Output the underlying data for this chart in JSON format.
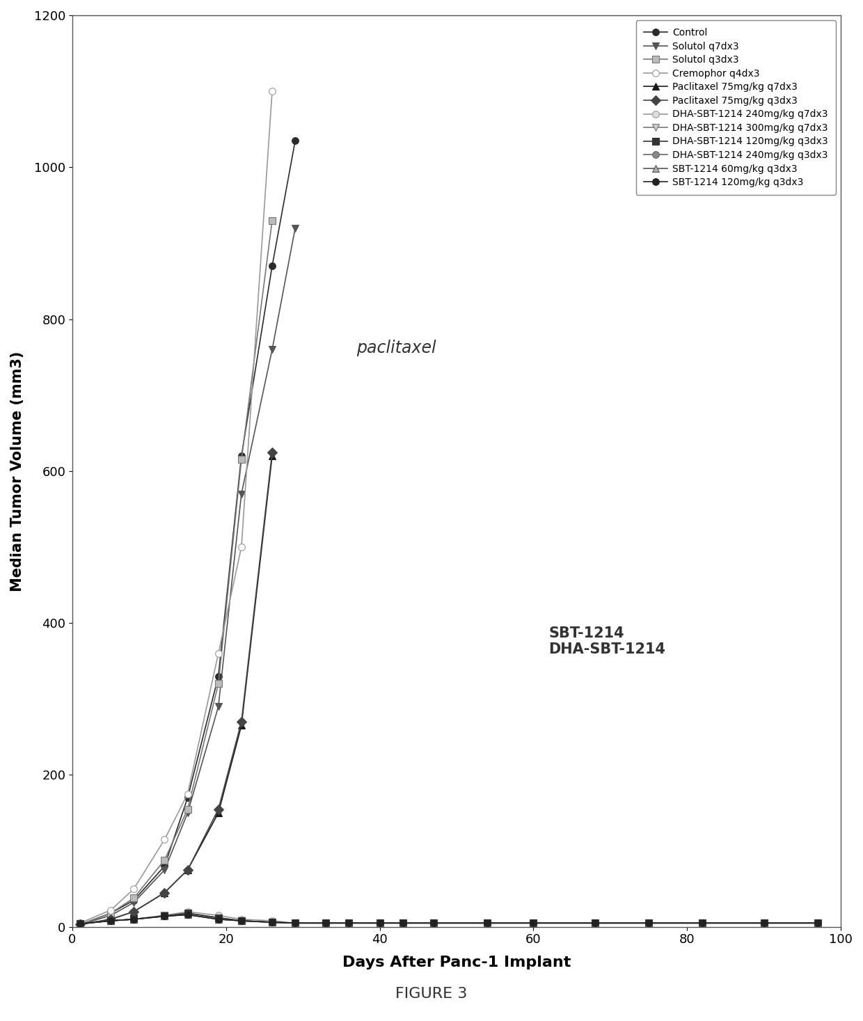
{
  "xlabel": "Days After Panc-1 Implant",
  "ylabel": "Median Tumor Volume (mm3)",
  "figure_caption": "FIGURE 3",
  "annotation_text": "paclitaxel",
  "annotation2_text": "SBT-1214\nDHA-SBT-1214",
  "xlim": [
    0,
    100
  ],
  "ylim": [
    0,
    1200
  ],
  "xticks": [
    0,
    20,
    40,
    60,
    80,
    100
  ],
  "yticks": [
    0,
    200,
    400,
    600,
    800,
    1000,
    1200
  ],
  "series": [
    {
      "label": "Control",
      "color": "#2b2b2b",
      "marker": "o",
      "mfc": "#2b2b2b",
      "mec": "#2b2b2b",
      "x": [
        1,
        5,
        8,
        12,
        15,
        19,
        22,
        26,
        29
      ],
      "y": [
        3,
        18,
        35,
        80,
        170,
        330,
        620,
        870,
        1035
      ]
    },
    {
      "label": "Solutol q7dx3",
      "color": "#555555",
      "marker": "v",
      "mfc": "#555555",
      "mec": "#555555",
      "x": [
        1,
        5,
        8,
        12,
        15,
        19,
        22,
        26,
        29
      ],
      "y": [
        3,
        15,
        32,
        75,
        150,
        290,
        570,
        760,
        920
      ]
    },
    {
      "label": "Solutol q3dx3",
      "color": "#777777",
      "marker": "s",
      "mfc": "#bbbbbb",
      "mec": "#777777",
      "x": [
        1,
        5,
        8,
        12,
        15,
        19,
        22,
        26
      ],
      "y": [
        3,
        18,
        38,
        88,
        155,
        320,
        615,
        930
      ]
    },
    {
      "label": "Cremophor q4dx3",
      "color": "#999999",
      "marker": "o",
      "mfc": "#ffffff",
      "mec": "#999999",
      "x": [
        1,
        5,
        8,
        12,
        15,
        19,
        22,
        26
      ],
      "y": [
        5,
        22,
        50,
        115,
        175,
        360,
        500,
        1100
      ]
    },
    {
      "label": "Paclitaxel 75mg/kg q7dx3",
      "color": "#1a1a1a",
      "marker": "^",
      "mfc": "#1a1a1a",
      "mec": "#1a1a1a",
      "x": [
        1,
        5,
        8,
        12,
        15,
        19,
        22,
        26,
        29,
        33,
        36,
        40,
        43
      ],
      "y": [
        3,
        10,
        20,
        45,
        75,
        150,
        265,
        620,
        null,
        null,
        null,
        null,
        null
      ]
    },
    {
      "label": "Paclitaxel 75mg/kg q3dx3",
      "color": "#444444",
      "marker": "D",
      "mfc": "#444444",
      "mec": "#444444",
      "x": [
        1,
        5,
        8,
        12,
        15,
        19,
        22,
        26,
        29,
        33,
        36,
        40,
        43,
        47
      ],
      "y": [
        3,
        10,
        20,
        45,
        75,
        155,
        270,
        625,
        null,
        null,
        null,
        null,
        null,
        null
      ]
    },
    {
      "label": "DHA-SBT-1214 240mg/kg q7dx3",
      "color": "#999999",
      "marker": "o",
      "mfc": "#dddddd",
      "mec": "#999999",
      "x": [
        1,
        5,
        8,
        12,
        15,
        19,
        22,
        26,
        29,
        33,
        36,
        40,
        43,
        47,
        54,
        60,
        68,
        75,
        82,
        90,
        97
      ],
      "y": [
        4,
        8,
        10,
        15,
        20,
        15,
        10,
        8,
        5,
        5,
        5,
        5,
        5,
        5,
        5,
        5,
        5,
        5,
        5,
        5,
        5
      ]
    },
    {
      "label": "DHA-SBT-1214 300mg/kg q7dx3",
      "color": "#777777",
      "marker": "v",
      "mfc": "#cccccc",
      "mec": "#777777",
      "x": [
        1,
        5,
        8,
        12,
        15,
        19,
        22,
        26,
        29,
        33,
        36,
        40,
        43,
        47,
        54,
        60,
        68,
        75,
        82,
        90,
        97
      ],
      "y": [
        4,
        8,
        10,
        15,
        18,
        12,
        8,
        6,
        5,
        5,
        5,
        5,
        5,
        5,
        5,
        5,
        5,
        5,
        5,
        5,
        5
      ]
    },
    {
      "label": "DHA-SBT-1214 120mg/kg q3dx3",
      "color": "#333333",
      "marker": "s",
      "mfc": "#333333",
      "mec": "#333333",
      "x": [
        1,
        5,
        8,
        12,
        15,
        19,
        22,
        26,
        29,
        33,
        36,
        40,
        43,
        47,
        54,
        60,
        68,
        75,
        82,
        90,
        97
      ],
      "y": [
        4,
        8,
        10,
        14,
        18,
        12,
        8,
        6,
        5,
        5,
        5,
        5,
        5,
        5,
        5,
        5,
        5,
        5,
        5,
        5,
        5
      ]
    },
    {
      "label": "DHA-SBT-1214 240mg/kg q3dx3",
      "color": "#666666",
      "marker": "o",
      "mfc": "#888888",
      "mec": "#666666",
      "x": [
        1,
        5,
        8,
        12,
        15,
        19,
        22,
        26,
        29,
        33,
        36,
        40,
        43,
        47,
        54,
        60,
        68,
        75,
        82,
        90,
        97
      ],
      "y": [
        4,
        8,
        10,
        14,
        16,
        10,
        8,
        6,
        5,
        5,
        5,
        5,
        5,
        5,
        5,
        5,
        5,
        5,
        5,
        5,
        5
      ]
    },
    {
      "label": "SBT-1214 60mg/kg q3dx3",
      "color": "#555555",
      "marker": "^",
      "mfc": "#aaaaaa",
      "mec": "#555555",
      "x": [
        1,
        5,
        8,
        12,
        15,
        19,
        22,
        26,
        29,
        33,
        36,
        40,
        43,
        47,
        54,
        60,
        68,
        75,
        82,
        90,
        97
      ],
      "y": [
        4,
        8,
        10,
        14,
        16,
        10,
        8,
        6,
        5,
        5,
        5,
        5,
        5,
        5,
        5,
        5,
        5,
        5,
        5,
        5,
        5
      ]
    },
    {
      "label": "SBT-1214 120mg/kg q3dx3",
      "color": "#222222",
      "marker": "o",
      "mfc": "#222222",
      "mec": "#222222",
      "x": [
        1,
        5,
        8,
        12,
        15,
        19,
        22,
        26,
        29,
        33,
        36,
        40,
        43,
        47,
        54,
        60,
        68,
        75,
        82,
        90,
        97
      ],
      "y": [
        4,
        8,
        10,
        14,
        16,
        10,
        8,
        6,
        5,
        5,
        5,
        5,
        5,
        5,
        5,
        5,
        5,
        5,
        5,
        5,
        5
      ]
    }
  ]
}
